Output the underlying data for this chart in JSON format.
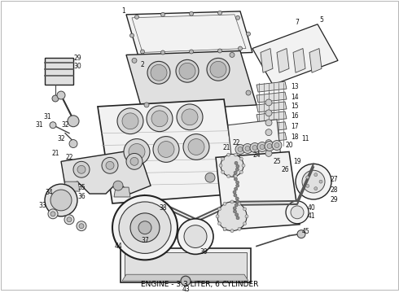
{
  "caption": "ENGINE - 3.3 LITER, 6 CYLINDER",
  "background_color": "#ffffff",
  "fig_width": 4.9,
  "fig_height": 3.6,
  "dpi": 100,
  "caption_fontsize": 6.5,
  "edge_color": "#222222",
  "fill_light": "#f2f2f2",
  "fill_mid": "#e0e0e0",
  "fill_dark": "#cccccc",
  "line_color": "#333333"
}
